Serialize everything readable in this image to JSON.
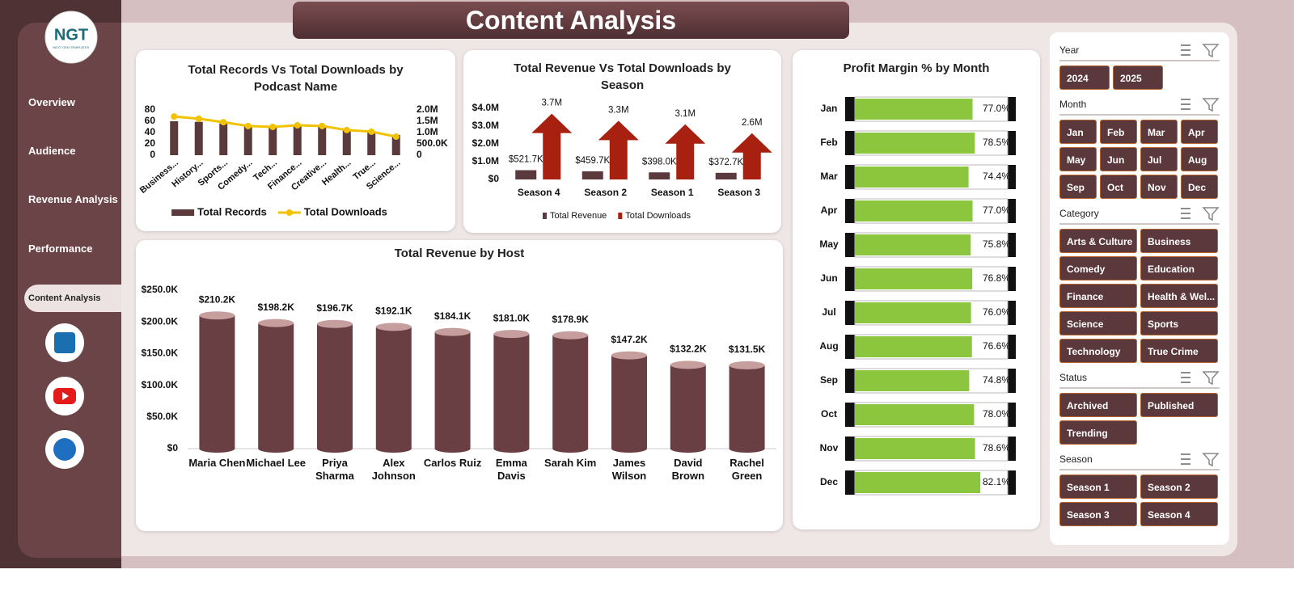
{
  "header": {
    "title": "Content Analysis"
  },
  "logo": {
    "text": "NGT",
    "subtitle": "NEXT GEN TEMPLATES"
  },
  "nav": [
    "Overview",
    "Audience",
    "Revenue Analysis",
    "Performance",
    "Content Analysis"
  ],
  "chart_data": [
    {
      "type": "combo",
      "title": "Total Records Vs Total Downloads by Podcast Name",
      "categories": [
        "Business...",
        "History...",
        "Sports...",
        "Comedy...",
        "Tech...",
        "Finance...",
        "Creative...",
        "Health...",
        "True...",
        "Science..."
      ],
      "series": [
        {
          "name": "Total Records",
          "type": "bar",
          "color": "#5b3a3d",
          "values": [
            60,
            59,
            56,
            51,
            49,
            51,
            50,
            44,
            41,
            36
          ]
        },
        {
          "name": "Total Downloads",
          "type": "line",
          "axis": "y2",
          "color": "#f2c200",
          "values": [
            1710000,
            1610000,
            1460000,
            1290000,
            1250000,
            1320000,
            1290000,
            1110000,
            1040000,
            820000
          ]
        }
      ],
      "ylim": [
        0,
        80
      ],
      "yticks": [
        0,
        20,
        40,
        60,
        80
      ],
      "y2lim": [
        0,
        2000000
      ],
      "y2ticks": [
        0,
        {
          "value": 500000,
          "label": "500.0K"
        },
        {
          "value": 1000000,
          "label": "1.0M"
        },
        {
          "value": 1500000,
          "label": "1.5M"
        },
        {
          "value": 2000000,
          "label": "2.0M"
        }
      ],
      "legend": "bottom"
    },
    {
      "type": "combo",
      "title": "Total Revenue Vs Total Downloads by Season",
      "categories": [
        "Season 4",
        "Season 2",
        "Season 1",
        "Season 3"
      ],
      "series": [
        {
          "name": "Total Revenue",
          "type": "bar",
          "color": "#5b3a3d",
          "values": [
            521700,
            459700,
            398000,
            372700
          ],
          "value_labels": [
            "$521.7K",
            "$459.7K",
            "$398.0K",
            "$372.7K"
          ]
        },
        {
          "name": "Total Downloads",
          "type": "arrow",
          "color": "#a8200f",
          "values": [
            3700000,
            3300000,
            3100000,
            2600000
          ],
          "value_labels": [
            "3.7M",
            "3.3M",
            "3.1M",
            "2.6M"
          ]
        }
      ],
      "ylim": [
        0,
        4000000
      ],
      "yticks": [
        {
          "value": 0,
          "label": "$0"
        },
        {
          "value": 1000000,
          "label": "$1.0M"
        },
        {
          "value": 2000000,
          "label": "$2.0M"
        },
        {
          "value": 3000000,
          "label": "$3.0M"
        },
        {
          "value": 4000000,
          "label": "$4.0M"
        }
      ],
      "legend": "bottom"
    },
    {
      "type": "hbar",
      "title": "Profit Margin % by Month",
      "categories": [
        "Jan",
        "Feb",
        "Mar",
        "Apr",
        "May",
        "Jun",
        "Jul",
        "Aug",
        "Sep",
        "Oct",
        "Nov",
        "Dec"
      ],
      "values": [
        77.0,
        78.5,
        74.4,
        77.0,
        75.8,
        76.8,
        76.0,
        76.6,
        74.8,
        78.0,
        78.6,
        82.1
      ],
      "value_labels": [
        "77.0%",
        "78.5%",
        "74.4%",
        "77.0%",
        "75.8%",
        "76.8%",
        "76.0%",
        "76.6%",
        "74.8%",
        "78.0%",
        "78.6%",
        "82.1%"
      ],
      "xlim": [
        0,
        100
      ],
      "color": "#8cc63f"
    },
    {
      "type": "bar",
      "title": "Total Revenue by Host",
      "categories": [
        "Maria Chen",
        "Michael Lee",
        "Priya Sharma",
        "Alex Johnson",
        "Carlos Ruiz",
        "Emma Davis",
        "Sarah Kim",
        "James Wilson",
        "David Brown",
        "Rachel Green"
      ],
      "values": [
        210200,
        198200,
        196700,
        192100,
        184100,
        181000,
        178900,
        147200,
        132200,
        131500
      ],
      "value_labels": [
        "$210.2K",
        "$198.2K",
        "$196.7K",
        "$192.1K",
        "$184.1K",
        "$181.0K",
        "$178.9K",
        "$147.2K",
        "$132.2K",
        "$131.5K"
      ],
      "ylim": [
        0,
        250000
      ],
      "yticks": [
        {
          "value": 0,
          "label": "$0"
        },
        {
          "value": 50000,
          "label": "$50.0K"
        },
        {
          "value": 100000,
          "label": "$100.0K"
        },
        {
          "value": 150000,
          "label": "$150.0K"
        },
        {
          "value": 200000,
          "label": "$200.0K"
        },
        {
          "value": 250000,
          "label": "$250.0K"
        }
      ],
      "color": "#6a3f43"
    }
  ],
  "slicers": [
    {
      "title": "Year",
      "items": [
        "2024",
        "2025"
      ]
    },
    {
      "title": "Month",
      "items": [
        "Jan",
        "Feb",
        "Mar",
        "Apr",
        "May",
        "Jun",
        "Jul",
        "Aug",
        "Sep",
        "Oct",
        "Nov",
        "Dec"
      ]
    },
    {
      "title": "Category",
      "items": [
        "Arts & Culture",
        "Business",
        "Comedy",
        "Education",
        "Finance",
        "Health & Wel...",
        "Science",
        "Sports",
        "Technology",
        "True Crime"
      ]
    },
    {
      "title": "Status",
      "items": [
        "Archived",
        "Published",
        "Trending"
      ]
    },
    {
      "title": "Season",
      "items": [
        "Season 1",
        "Season 2",
        "Season 3",
        "Season 4"
      ]
    }
  ]
}
